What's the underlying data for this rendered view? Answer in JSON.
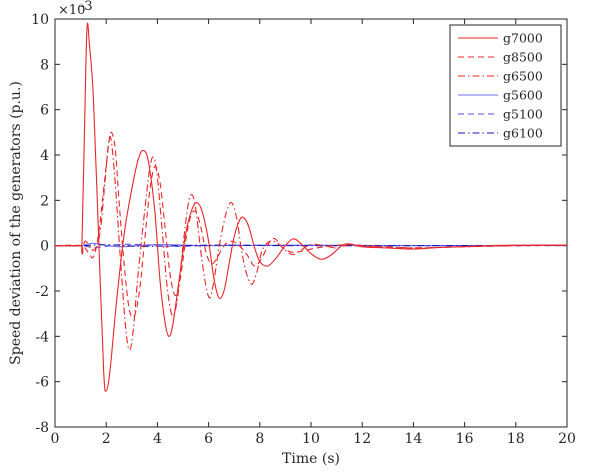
{
  "chart_data": {
    "type": "line",
    "xlabel": "Time (s)",
    "ylabel": "Speed deviation of the generators (p.u.)",
    "y_multiplier": "×10",
    "y_multiplier_exponent": "-3",
    "xlim": [
      0,
      20
    ],
    "ylim": [
      -8,
      10
    ],
    "x_ticks": [
      "0",
      "2",
      "4",
      "6",
      "8",
      "10",
      "12",
      "14",
      "16",
      "18",
      "20"
    ],
    "y_ticks": [
      "-8",
      "-6",
      "-4",
      "-2",
      "0",
      "2",
      "4",
      "6",
      "8",
      "10"
    ],
    "grid": false,
    "legend_position": "top-right",
    "series": [
      {
        "name": "g7000",
        "color": "#e8262a",
        "dash": "solid",
        "points": [
          [
            0,
            0
          ],
          [
            1,
            0
          ],
          [
            1.05,
            0
          ],
          [
            1.15,
            5
          ],
          [
            1.25,
            9.6
          ],
          [
            1.35,
            8.8
          ],
          [
            1.5,
            6.5
          ],
          [
            1.7,
            0.5
          ],
          [
            1.9,
            -5.5
          ],
          [
            2.0,
            -6.4
          ],
          [
            2.15,
            -5.5
          ],
          [
            2.4,
            -2.5
          ],
          [
            2.7,
            0.5
          ],
          [
            3.0,
            2.5
          ],
          [
            3.25,
            3.8
          ],
          [
            3.45,
            4.2
          ],
          [
            3.65,
            3.7
          ],
          [
            3.9,
            1.5
          ],
          [
            4.1,
            -1.5
          ],
          [
            4.3,
            -3.4
          ],
          [
            4.45,
            -4.0
          ],
          [
            4.6,
            -3.5
          ],
          [
            4.85,
            -1.5
          ],
          [
            5.1,
            0.5
          ],
          [
            5.35,
            1.6
          ],
          [
            5.55,
            1.9
          ],
          [
            5.75,
            1.5
          ],
          [
            6.0,
            0.2
          ],
          [
            6.2,
            -1.4
          ],
          [
            6.4,
            -2.3
          ],
          [
            6.6,
            -2.0
          ],
          [
            6.8,
            -0.8
          ],
          [
            7.0,
            0.4
          ],
          [
            7.2,
            1.1
          ],
          [
            7.35,
            1.25
          ],
          [
            7.55,
            0.9
          ],
          [
            7.8,
            -0.1
          ],
          [
            8.0,
            -0.7
          ],
          [
            8.3,
            -0.9
          ],
          [
            8.6,
            -0.6
          ],
          [
            9.0,
            0.0
          ],
          [
            9.3,
            0.3
          ],
          [
            9.6,
            0.1
          ],
          [
            10.0,
            -0.35
          ],
          [
            10.4,
            -0.6
          ],
          [
            10.8,
            -0.4
          ],
          [
            11.2,
            0.0
          ],
          [
            11.5,
            0.08
          ],
          [
            12,
            -0.05
          ],
          [
            13,
            -0.1
          ],
          [
            14,
            -0.15
          ],
          [
            15,
            -0.08
          ],
          [
            16,
            -0.04
          ],
          [
            17,
            0
          ],
          [
            18,
            0.02
          ],
          [
            20,
            0.02
          ]
        ]
      },
      {
        "name": "g8500",
        "color": "#e8262a",
        "dash": "dashed",
        "points": [
          [
            0,
            0
          ],
          [
            1,
            0
          ],
          [
            1.3,
            -0.3
          ],
          [
            1.5,
            -0.5
          ],
          [
            1.7,
            0.5
          ],
          [
            1.9,
            2.5
          ],
          [
            2.1,
            4.5
          ],
          [
            2.2,
            5.0
          ],
          [
            2.35,
            4.3
          ],
          [
            2.5,
            2.0
          ],
          [
            2.7,
            -0.8
          ],
          [
            2.9,
            -2.8
          ],
          [
            3.1,
            -3.1
          ],
          [
            3.3,
            -2.0
          ],
          [
            3.5,
            0.2
          ],
          [
            3.7,
            2.4
          ],
          [
            3.9,
            3.5
          ],
          [
            4.1,
            2.8
          ],
          [
            4.3,
            0.8
          ],
          [
            4.5,
            -1.3
          ],
          [
            4.7,
            -2.2
          ],
          [
            4.9,
            -1.4
          ],
          [
            5.1,
            0.2
          ],
          [
            5.3,
            1.3
          ],
          [
            5.5,
            1.5
          ],
          [
            5.7,
            0.8
          ],
          [
            5.9,
            -0.3
          ],
          [
            6.1,
            -0.8
          ],
          [
            6.3,
            -0.6
          ],
          [
            6.6,
            0.0
          ],
          [
            6.9,
            0.2
          ],
          [
            7.2,
            0.0
          ],
          [
            7.5,
            -0.4
          ],
          [
            7.8,
            -0.9
          ],
          [
            8.1,
            -0.5
          ],
          [
            8.4,
            0.2
          ],
          [
            8.6,
            0.3
          ],
          [
            8.9,
            -0.1
          ],
          [
            9.3,
            -0.3
          ],
          [
            9.8,
            -0.2
          ],
          [
            10.5,
            -0.05
          ],
          [
            11.5,
            0.05
          ],
          [
            12.5,
            -0.05
          ],
          [
            14,
            -0.1
          ],
          [
            16,
            -0.05
          ],
          [
            18,
            0
          ],
          [
            20,
            0.01
          ]
        ]
      },
      {
        "name": "g6500",
        "color": "#e8262a",
        "dash": "dashdot",
        "points": [
          [
            0,
            0
          ],
          [
            1,
            0
          ],
          [
            1.2,
            0.2
          ],
          [
            1.5,
            -0.2
          ],
          [
            1.75,
            0.5
          ],
          [
            1.95,
            2.8
          ],
          [
            2.1,
            4.6
          ],
          [
            2.2,
            4.6
          ],
          [
            2.35,
            2.8
          ],
          [
            2.55,
            -0.5
          ],
          [
            2.75,
            -3.5
          ],
          [
            2.9,
            -4.6
          ],
          [
            3.05,
            -3.8
          ],
          [
            3.25,
            -1.2
          ],
          [
            3.5,
            1.5
          ],
          [
            3.7,
            3.4
          ],
          [
            3.85,
            3.9
          ],
          [
            4.0,
            3.0
          ],
          [
            4.2,
            0.5
          ],
          [
            4.4,
            -2.0
          ],
          [
            4.6,
            -3.1
          ],
          [
            4.8,
            -2.2
          ],
          [
            5.0,
            0.0
          ],
          [
            5.2,
            1.8
          ],
          [
            5.35,
            2.25
          ],
          [
            5.5,
            1.6
          ],
          [
            5.7,
            -0.3
          ],
          [
            5.9,
            -1.8
          ],
          [
            6.05,
            -2.3
          ],
          [
            6.2,
            -1.6
          ],
          [
            6.45,
            0.2
          ],
          [
            6.7,
            1.5
          ],
          [
            6.9,
            1.9
          ],
          [
            7.1,
            1.2
          ],
          [
            7.3,
            -0.3
          ],
          [
            7.5,
            -1.3
          ],
          [
            7.7,
            -1.7
          ],
          [
            7.9,
            -1.1
          ],
          [
            8.1,
            -0.2
          ],
          [
            8.4,
            0.2
          ],
          [
            8.7,
            0.1
          ],
          [
            9.0,
            -0.2
          ],
          [
            9.3,
            -0.4
          ],
          [
            9.6,
            -0.2
          ],
          [
            10,
            0.05
          ],
          [
            10.5,
            0.0
          ],
          [
            11,
            -0.1
          ],
          [
            11.5,
            0.05
          ],
          [
            12,
            0.0
          ],
          [
            13,
            -0.05
          ],
          [
            14,
            -0.1
          ],
          [
            16,
            -0.05
          ],
          [
            18,
            0.0
          ],
          [
            20,
            0.02
          ]
        ]
      },
      {
        "name": "g5600",
        "color": "#6f6ff2",
        "dash": "solid",
        "points": [
          [
            0,
            0
          ],
          [
            1,
            0
          ],
          [
            1.5,
            0.1
          ],
          [
            2.5,
            -0.05
          ],
          [
            4,
            0.05
          ],
          [
            6,
            0
          ],
          [
            10,
            0.02
          ],
          [
            14,
            0
          ],
          [
            20,
            0.02
          ]
        ]
      },
      {
        "name": "g5100",
        "color": "#5050e8",
        "dash": "dashed",
        "points": [
          [
            0,
            0
          ],
          [
            1,
            0
          ],
          [
            1.6,
            -0.08
          ],
          [
            2.8,
            0.06
          ],
          [
            4.5,
            -0.03
          ],
          [
            7,
            0.02
          ],
          [
            12,
            0
          ],
          [
            20,
            0
          ]
        ]
      },
      {
        "name": "g6100",
        "color": "#1a1ab8",
        "dash": "dashdot",
        "points": [
          [
            0,
            0
          ],
          [
            1,
            0
          ],
          [
            2,
            0.04
          ],
          [
            3.5,
            -0.03
          ],
          [
            6,
            0.02
          ],
          [
            10,
            0
          ],
          [
            20,
            0.01
          ]
        ]
      }
    ]
  }
}
